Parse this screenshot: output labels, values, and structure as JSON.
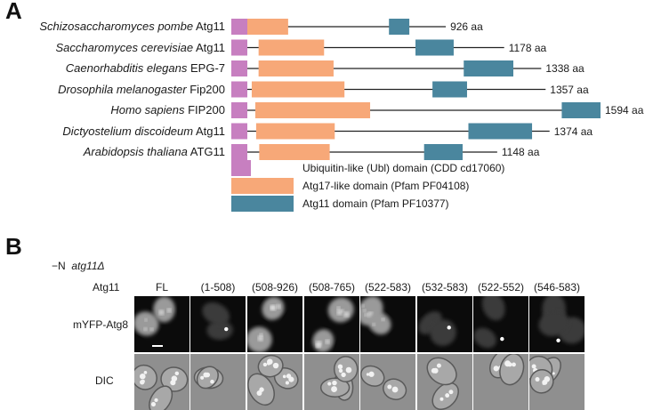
{
  "panel_a": {
    "letter": "A",
    "proteins": [
      {
        "genus": "Schizosaccharomyces pombe",
        "protein": "Atg11",
        "length_label": "926 aa",
        "length": 926,
        "domains": {
          "ubl": [
            0,
            0.04
          ],
          "atg17": [
            0.055,
            0.265
          ],
          "atg11": [
            0.735,
            0.83
          ]
        }
      },
      {
        "genus": "Saccharomyces cerevisiae",
        "protein": "Atg11",
        "length_label": "1178 aa",
        "length": 1178,
        "domains": {
          "ubl": [
            0,
            0.05
          ],
          "atg17": [
            0.1,
            0.34
          ],
          "atg11": [
            0.675,
            0.815
          ]
        }
      },
      {
        "genus": "Caenorhabditis elegans",
        "protein": "EPG-7",
        "length_label": "1338 aa",
        "length": 1338,
        "domains": {
          "ubl": [
            0,
            0.04
          ],
          "atg17": [
            0.088,
            0.33
          ],
          "atg11": [
            0.75,
            0.91
          ]
        }
      },
      {
        "genus": "Drosophila melanogaster",
        "protein": "Fip200",
        "length_label": "1357 aa",
        "length": 1357,
        "domains": {
          "ubl": [
            0,
            0.04
          ],
          "atg17": [
            0.065,
            0.36
          ],
          "atg11": [
            0.64,
            0.75
          ]
        }
      },
      {
        "genus": "Homo sapiens",
        "protein": "FIP200",
        "length_label": "1594 aa",
        "length": 1594,
        "domains": {
          "ubl": [
            0,
            0.04
          ],
          "atg17": [
            0.065,
            0.376
          ],
          "atg11": [
            0.895,
            1.0
          ]
        }
      },
      {
        "genus": "Dictyostelium discoideum",
        "protein": "Atg11",
        "length_label": "1374 aa",
        "length": 1374,
        "domains": {
          "ubl": [
            0,
            0.04
          ],
          "atg17": [
            0.078,
            0.325
          ],
          "atg11": [
            0.745,
            0.945
          ]
        }
      },
      {
        "genus": "Arabidopsis thaliana",
        "protein": "ATG11",
        "length_label": "1148 aa",
        "length": 1148,
        "domains": {
          "ubl": [
            0,
            0.05
          ],
          "atg17": [
            0.105,
            0.37
          ],
          "atg11": [
            0.725,
            0.87
          ]
        }
      }
    ],
    "legend": [
      {
        "key": "ubl",
        "label": "Ubiquitin-like (Ubl) domain (CDD cd17060)"
      },
      {
        "key": "atg17",
        "label": "Atg17-like domain (Pfam PF04108)"
      },
      {
        "key": "atg11",
        "label": "Atg11 domain (Pfam PF10377)"
      }
    ],
    "colors": {
      "ubl": "#c77fc0",
      "atg17": "#f7a878",
      "atg11": "#4a869e",
      "line": "#222222"
    }
  },
  "panel_b": {
    "letter": "B",
    "condition_prefix": "−N",
    "condition_strain": "atg11Δ",
    "header_label": "Atg11",
    "columns": [
      "FL",
      "(1-508)",
      "(508-926)",
      "(508-765)",
      "(522-583)",
      "(532-583)",
      "(522-552)",
      "(546-583)"
    ],
    "rows": [
      "mYFP-Atg8",
      "DIC"
    ]
  }
}
